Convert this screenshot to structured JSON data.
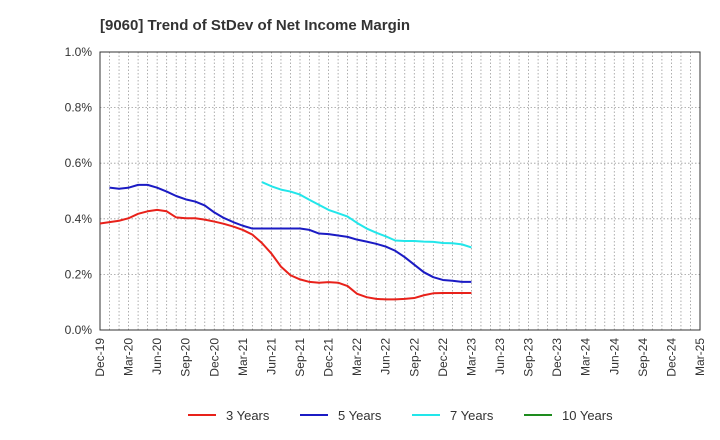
{
  "chart_data": {
    "type": "line",
    "title": "[9060]  Trend of StDev of Net Income Margin",
    "xlabel": "",
    "ylabel": "",
    "x_tick_labels": [
      "Dec-19",
      "Mar-20",
      "Jun-20",
      "Sep-20",
      "Dec-20",
      "Mar-21",
      "Jun-21",
      "Sep-21",
      "Dec-21",
      "Mar-22",
      "Jun-22",
      "Sep-22",
      "Dec-22",
      "Mar-23",
      "Jun-23",
      "Sep-23",
      "Dec-23",
      "Mar-24",
      "Jun-24",
      "Sep-24",
      "Dec-24",
      "Mar-25"
    ],
    "y_tick_labels": [
      "0.0%",
      "0.2%",
      "0.4%",
      "0.6%",
      "0.8%",
      "1.0%"
    ],
    "ylim": [
      0,
      1.0
    ],
    "y_unit": "%",
    "grid": true,
    "legend_position": "bottom",
    "series": [
      {
        "name": "3 Years",
        "color": "#e8211a",
        "start": "Dec-19",
        "values": [
          0.383,
          0.388,
          0.393,
          0.402,
          0.418,
          0.427,
          0.432,
          0.427,
          0.405,
          0.402,
          0.402,
          0.397,
          0.39,
          0.382,
          0.372,
          0.36,
          0.343,
          0.313,
          0.275,
          0.228,
          0.197,
          0.182,
          0.173,
          0.17,
          0.172,
          0.17,
          0.158,
          0.13,
          0.118,
          0.112,
          0.11,
          0.11,
          0.112,
          0.115,
          0.125,
          0.132,
          0.133,
          0.133,
          0.133,
          0.133
        ]
      },
      {
        "name": "5 Years",
        "color": "#1b1bc4",
        "start": "Dec-19",
        "values": [
          null,
          0.512,
          0.508,
          0.512,
          0.522,
          0.522,
          0.512,
          0.498,
          0.482,
          0.47,
          0.462,
          0.448,
          0.423,
          0.403,
          0.388,
          0.375,
          0.365,
          0.365,
          0.365,
          0.365,
          0.365,
          0.365,
          0.36,
          0.347,
          0.345,
          0.34,
          0.335,
          0.325,
          0.318,
          0.31,
          0.3,
          0.285,
          0.262,
          0.235,
          0.208,
          0.19,
          0.18,
          0.177,
          0.173,
          0.173
        ]
      },
      {
        "name": "7 Years",
        "color": "#22e6ea",
        "start": "Dec-19",
        "values": [
          null,
          null,
          null,
          null,
          null,
          null,
          null,
          null,
          null,
          null,
          null,
          null,
          null,
          null,
          null,
          null,
          null,
          0.532,
          0.517,
          0.505,
          0.498,
          0.487,
          0.468,
          0.45,
          0.432,
          0.42,
          0.408,
          0.385,
          0.365,
          0.35,
          0.337,
          0.322,
          0.32,
          0.32,
          0.318,
          0.317,
          0.313,
          0.312,
          0.308,
          0.297
        ]
      },
      {
        "name": "10 Years",
        "color": "#1e8c1e",
        "start": "Dec-19",
        "values": []
      }
    ]
  }
}
